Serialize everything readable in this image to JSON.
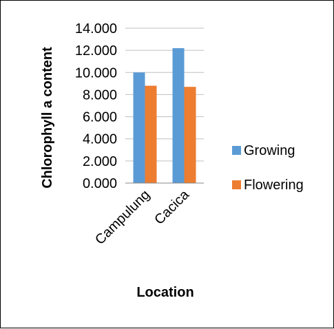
{
  "chart_data": {
    "type": "bar",
    "title": "",
    "xlabel": "Location",
    "ylabel": "Chlorophyll a content",
    "categories": [
      "Campulung",
      "Cacica"
    ],
    "series": [
      {
        "name": "Growing",
        "values": [
          10.0,
          12.2
        ],
        "color": "#5B9BD5"
      },
      {
        "name": "Flowering",
        "values": [
          8.8,
          8.7
        ],
        "color": "#ED7D31"
      }
    ],
    "ylim": [
      0,
      14
    ],
    "yticks": [
      "0.000",
      "2.000",
      "4.000",
      "6.000",
      "8.000",
      "10.000",
      "12.000",
      "14.000"
    ],
    "grid": true,
    "legend": "right",
    "colors": {
      "gridline": "#bfbfbf",
      "axis": "#888888",
      "frame": "#000000"
    }
  }
}
